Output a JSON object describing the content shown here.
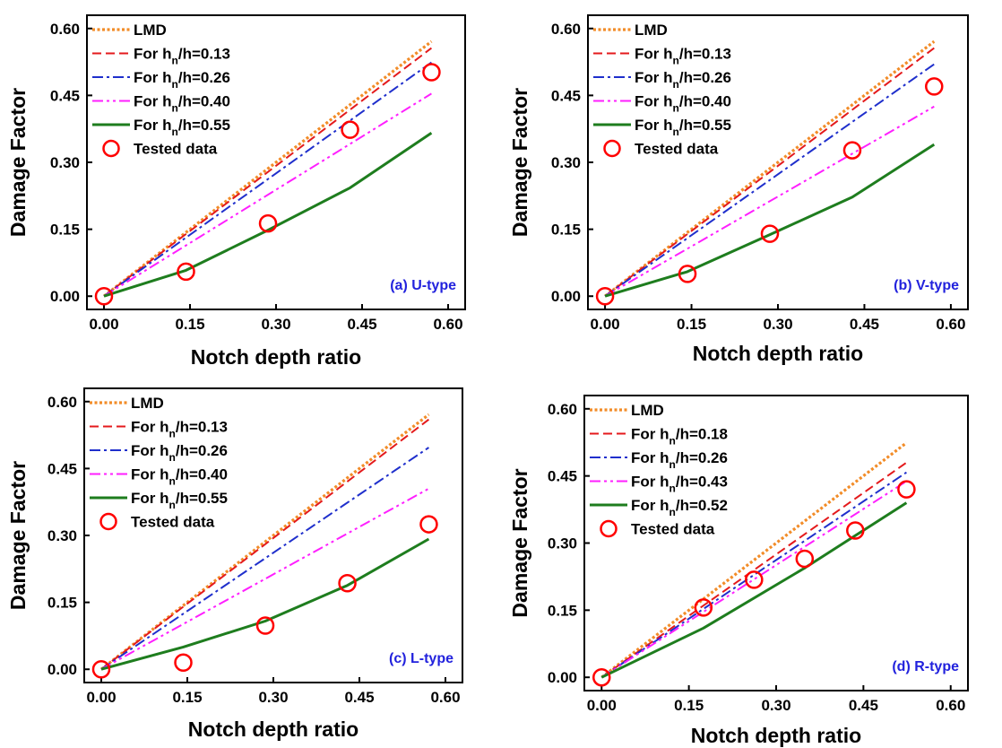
{
  "figure": {
    "colors": {
      "LMD": "#f28c28",
      "s1": "#e41a1c",
      "s2": "#1f2fcc",
      "s3": "#ff1fff",
      "s4": "#1e7d1e",
      "tested": "#ff0000",
      "tag": "#2222dd"
    }
  },
  "chart_data": [
    {
      "type": "line",
      "panel_label": "(a) U-type",
      "xlabel": "Notch depth ratio",
      "ylabel": "Damage Factor",
      "xlim": [
        0,
        0.6
      ],
      "ylim": [
        0,
        0.6
      ],
      "x_ticks": [
        "0.00",
        "0.15",
        "0.30",
        "0.45",
        "0.60"
      ],
      "y_ticks": [
        "0.00",
        "0.15",
        "0.30",
        "0.45",
        "0.60"
      ],
      "grid": false,
      "legend_position": "top-left",
      "series": [
        {
          "name": "LMD",
          "style": "dotted",
          "x": [
            0,
            0.571
          ],
          "y": [
            0,
            0.571
          ]
        },
        {
          "name": "For h_n/h=0.13",
          "legend_base": "For h",
          "legend_sub": "n",
          "legend_rest": "/h=0.13",
          "style": "dashed",
          "x": [
            0,
            0.571
          ],
          "y": [
            0,
            0.556
          ]
        },
        {
          "name": "For h_n/h=0.26",
          "legend_base": "For h",
          "legend_sub": "n",
          "legend_rest": "/h=0.26",
          "style": "dashdot",
          "x": [
            0,
            0.571
          ],
          "y": [
            0,
            0.524
          ]
        },
        {
          "name": "For h_n/h=0.40",
          "legend_base": "For h",
          "legend_sub": "n",
          "legend_rest": "/h=0.40",
          "style": "dashdotdot",
          "x": [
            0,
            0.571
          ],
          "y": [
            0,
            0.454
          ]
        },
        {
          "name": "For h_n/h=0.55",
          "legend_base": "For h",
          "legend_sub": "n",
          "legend_rest": "/h=0.55",
          "style": "solid",
          "x": [
            0,
            0.143,
            0.286,
            0.429,
            0.571
          ],
          "y": [
            0,
            0.058,
            0.148,
            0.243,
            0.366
          ]
        }
      ],
      "tested_data": {
        "name": "Tested data",
        "x": [
          0,
          0.143,
          0.286,
          0.429,
          0.571
        ],
        "y": [
          0,
          0.055,
          0.163,
          0.373,
          0.502
        ]
      }
    },
    {
      "type": "line",
      "panel_label": "(b) V-type",
      "xlabel": "Notch depth ratio",
      "ylabel": "Damage Factor",
      "xlim": [
        0,
        0.6
      ],
      "ylim": [
        0,
        0.6
      ],
      "x_ticks": [
        "0.00",
        "0.15",
        "0.30",
        "0.45",
        "0.60"
      ],
      "y_ticks": [
        "0.00",
        "0.15",
        "0.30",
        "0.45",
        "0.60"
      ],
      "grid": false,
      "legend_position": "top-left",
      "series": [
        {
          "name": "LMD",
          "style": "dotted",
          "x": [
            0,
            0.571
          ],
          "y": [
            0,
            0.571
          ]
        },
        {
          "name": "For h_n/h=0.13",
          "legend_base": "For h",
          "legend_sub": "n",
          "legend_rest": "/h=0.13",
          "style": "dashed",
          "x": [
            0,
            0.571
          ],
          "y": [
            0,
            0.556
          ]
        },
        {
          "name": "For h_n/h=0.26",
          "legend_base": "For h",
          "legend_sub": "n",
          "legend_rest": "/h=0.26",
          "style": "dashdot",
          "x": [
            0,
            0.571
          ],
          "y": [
            0,
            0.52
          ]
        },
        {
          "name": "For h_n/h=0.40",
          "legend_base": "For h",
          "legend_sub": "n",
          "legend_rest": "/h=0.40",
          "style": "dashdotdot",
          "x": [
            0,
            0.571
          ],
          "y": [
            0,
            0.425
          ]
        },
        {
          "name": "For h_n/h=0.55",
          "legend_base": "For h",
          "legend_sub": "n",
          "legend_rest": "/h=0.55",
          "style": "solid",
          "x": [
            0,
            0.143,
            0.286,
            0.429,
            0.571
          ],
          "y": [
            0,
            0.055,
            0.138,
            0.222,
            0.34
          ]
        }
      ],
      "tested_data": {
        "name": "Tested data",
        "x": [
          0,
          0.143,
          0.286,
          0.429,
          0.571
        ],
        "y": [
          0,
          0.05,
          0.14,
          0.327,
          0.47
        ]
      }
    },
    {
      "type": "line",
      "panel_label": "(c) L-type",
      "xlabel": "Notch depth ratio",
      "ylabel": "Damage Factor",
      "xlim": [
        0,
        0.6
      ],
      "ylim": [
        0,
        0.6
      ],
      "x_ticks": [
        "0.00",
        "0.15",
        "0.30",
        "0.45",
        "0.60"
      ],
      "y_ticks": [
        "0.00",
        "0.15",
        "0.30",
        "0.45",
        "0.60"
      ],
      "grid": false,
      "legend_position": "top-left",
      "series": [
        {
          "name": "LMD",
          "style": "dotted",
          "x": [
            0,
            0.571
          ],
          "y": [
            0,
            0.571
          ]
        },
        {
          "name": "For h_n/h=0.13",
          "legend_base": "For h",
          "legend_sub": "n",
          "legend_rest": "/h=0.13",
          "style": "dashed",
          "x": [
            0,
            0.571
          ],
          "y": [
            0,
            0.56
          ]
        },
        {
          "name": "For h_n/h=0.26",
          "legend_base": "For h",
          "legend_sub": "n",
          "legend_rest": "/h=0.26",
          "style": "dashdot",
          "x": [
            0,
            0.571
          ],
          "y": [
            0,
            0.497
          ]
        },
        {
          "name": "For h_n/h=0.40",
          "legend_base": "For h",
          "legend_sub": "n",
          "legend_rest": "/h=0.40",
          "style": "dashdotdot",
          "x": [
            0,
            0.571
          ],
          "y": [
            0,
            0.405
          ]
        },
        {
          "name": "For h_n/h=0.55",
          "legend_base": "For h",
          "legend_sub": "n",
          "legend_rest": "/h=0.55",
          "style": "solid",
          "x": [
            0,
            0.143,
            0.286,
            0.429,
            0.571
          ],
          "y": [
            0,
            0.05,
            0.108,
            0.188,
            0.292
          ]
        }
      ],
      "tested_data": {
        "name": "Tested data",
        "x": [
          0,
          0.143,
          0.286,
          0.429,
          0.571
        ],
        "y": [
          0,
          0.015,
          0.098,
          0.193,
          0.325
        ]
      }
    },
    {
      "type": "line",
      "panel_label": "(d) R-type",
      "xlabel": "Notch depth ratio",
      "ylabel": "Damage Factor",
      "xlim": [
        0,
        0.6
      ],
      "ylim": [
        0,
        0.6
      ],
      "x_ticks": [
        "0.00",
        "0.15",
        "0.30",
        "0.45",
        "0.60"
      ],
      "y_ticks": [
        "0.00",
        "0.15",
        "0.30",
        "0.45",
        "0.60"
      ],
      "grid": false,
      "legend_position": "top-left",
      "series": [
        {
          "name": "LMD",
          "style": "dotted",
          "x": [
            0,
            0.524
          ],
          "y": [
            0,
            0.524
          ]
        },
        {
          "name": "For h_n/h=0.18",
          "legend_base": "For h",
          "legend_sub": "n",
          "legend_rest": "/h=0.18",
          "style": "dashed",
          "x": [
            0,
            0.524
          ],
          "y": [
            0,
            0.48
          ]
        },
        {
          "name": "For h_n/h=0.26",
          "legend_base": "For h",
          "legend_sub": "n",
          "legend_rest": "/h=0.26",
          "style": "dashdot",
          "x": [
            0,
            0.524
          ],
          "y": [
            0,
            0.458
          ]
        },
        {
          "name": "For h_n/h=0.43",
          "legend_base": "For h",
          "legend_sub": "n",
          "legend_rest": "/h=0.43",
          "style": "dashdotdot",
          "x": [
            0,
            0.524
          ],
          "y": [
            0,
            0.438
          ]
        },
        {
          "name": "For h_n/h=0.52",
          "legend_base": "For h",
          "legend_sub": "n",
          "legend_rest": "/h=0.52",
          "style": "solid",
          "x": [
            0,
            0.175,
            0.35,
            0.524
          ],
          "y": [
            0,
            0.11,
            0.245,
            0.39
          ]
        }
      ],
      "tested_data": {
        "name": "Tested data",
        "x": [
          0,
          0.175,
          0.262,
          0.349,
          0.436,
          0.524
        ],
        "y": [
          0,
          0.156,
          0.218,
          0.265,
          0.328,
          0.42
        ]
      }
    }
  ]
}
